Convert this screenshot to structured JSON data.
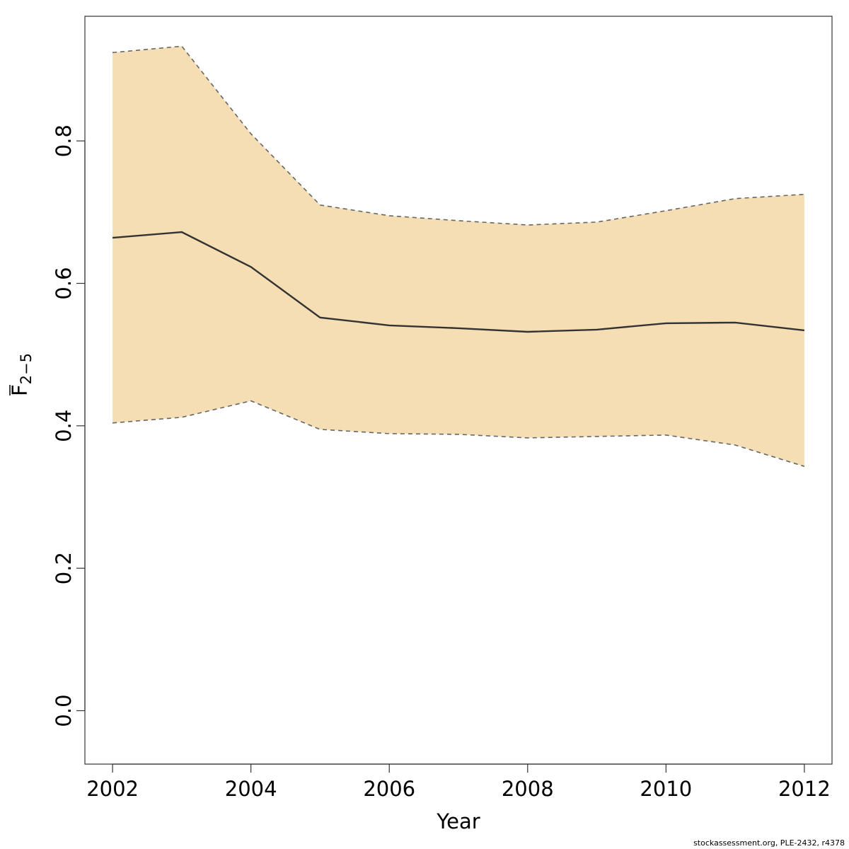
{
  "chart_data": {
    "type": "line",
    "title": "",
    "xlabel": "Year",
    "ylabel": {
      "main": "F",
      "subscript": "2−5"
    },
    "xlim": [
      2001.6,
      2012.4
    ],
    "ylim": [
      -0.075,
      0.975
    ],
    "x_ticks": [
      2002,
      2004,
      2006,
      2008,
      2010,
      2012
    ],
    "y_ticks": [
      0.0,
      0.2,
      0.4,
      0.6,
      0.8
    ],
    "y_tick_labels": [
      "0.0",
      "0.2",
      "0.4",
      "0.6",
      "0.8"
    ],
    "grid": false,
    "x": [
      2002,
      2003,
      2004,
      2005,
      2006,
      2007,
      2008,
      2009,
      2010,
      2011,
      2012
    ],
    "series": [
      {
        "role": "estimate",
        "values": [
          0.664,
          0.672,
          0.623,
          0.552,
          0.541,
          0.537,
          0.532,
          0.535,
          0.544,
          0.545,
          0.534
        ],
        "color": "#333333"
      },
      {
        "role": "upper",
        "values": [
          0.924,
          0.933,
          0.81,
          0.71,
          0.695,
          0.688,
          0.682,
          0.686,
          0.702,
          0.719,
          0.725
        ],
        "color": "#666666"
      },
      {
        "role": "lower",
        "values": [
          0.404,
          0.412,
          0.435,
          0.395,
          0.389,
          0.388,
          0.383,
          0.385,
          0.387,
          0.373,
          0.343
        ],
        "color": "#666666"
      }
    ],
    "band_color": "#F5DEB3"
  },
  "footer_text": "stockassessment.org, PLE-2432, r4378"
}
